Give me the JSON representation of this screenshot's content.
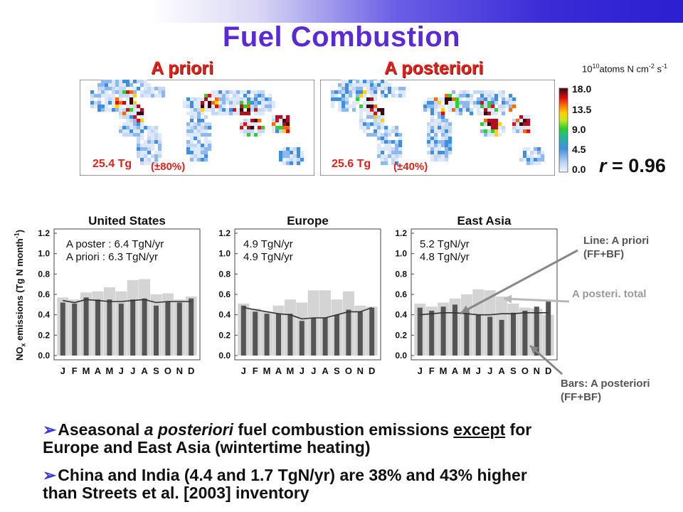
{
  "slide": {
    "title": "Fuel Combustion"
  },
  "maps": {
    "priori": {
      "title": "A priori",
      "total": "25.4 Tg",
      "uncertainty": "(±80%)"
    },
    "posteriori": {
      "title": "A posteriori",
      "total": "25.6 Tg",
      "uncertainty": "(±40%)"
    },
    "colorbar": {
      "ticks": [
        "18.0",
        "13.5",
        "9.0",
        "4.5",
        "0.0"
      ],
      "unit_base": "10",
      "unit_exp": "10",
      "unit_main": "atoms N cm",
      "unit_exp2": "-2",
      "unit_s": " s",
      "unit_exp3": "-1"
    },
    "correlation": {
      "label": "r",
      "value": "= 0.96"
    }
  },
  "y_axis_label_main": "NO",
  "y_axis_label_sub": "x",
  "y_axis_label_rest": " emissions (Tg N month",
  "y_axis_label_exp": "-1",
  "y_axis_label_close": ")",
  "legend": {
    "line": "Line: A priori (FF+BF)",
    "line_1": "Line: A priori",
    "line_2": "(FF+BF)",
    "light_bars": "A posteri. total",
    "bars_1": "Bars: A posteriori",
    "bars_2": "(FF+BF)"
  },
  "bullets": [
    {
      "part1": "Aseasonal ",
      "part2": "a posteriori",
      "part3": " fuel combustion emissions ",
      "part4": "except",
      "part5": " for",
      "line2": "Europe and East Asia (wintertime heating)"
    },
    {
      "line1": "China and India (4.4 and 1.7 TgN/yr) are 38% and 43% higher",
      "line2": "than Streets et al. [2003] inventory"
    }
  ],
  "colors": {
    "title": "#5a2ad4",
    "map_title": "#e0231a",
    "dark_bar": "#555555",
    "light_bar": "#d4d4d4",
    "line": "#333333",
    "arrow": "#3a3ad0"
  },
  "chart_data": [
    {
      "type": "bar",
      "title": "United States",
      "categories": [
        "J",
        "F",
        "M",
        "A",
        "M",
        "J",
        "J",
        "A",
        "S",
        "O",
        "N",
        "D"
      ],
      "ylim": [
        0,
        1.2
      ],
      "yticks": [
        "0.0",
        "0.2",
        "0.4",
        "0.6",
        "0.8",
        "1.0",
        "1.2"
      ],
      "annotation_1": "A poster : 6.4 TgN/yr",
      "annotation_2": "A priori  :  6.3 TgN/yr",
      "series": [
        {
          "values": [
            0.57,
            0.55,
            0.62,
            0.63,
            0.67,
            0.63,
            0.74,
            0.75,
            0.6,
            0.61,
            0.55,
            0.58
          ]
        },
        {
          "values": [
            0.52,
            0.51,
            0.57,
            0.55,
            0.55,
            0.51,
            0.55,
            0.56,
            0.49,
            0.53,
            0.52,
            0.56
          ]
        },
        {
          "values": [
            0.54,
            0.52,
            0.55,
            0.54,
            0.53,
            0.53,
            0.54,
            0.55,
            0.52,
            0.53,
            0.53,
            0.53
          ]
        }
      ]
    },
    {
      "type": "bar",
      "title": "Europe",
      "categories": [
        "J",
        "F",
        "M",
        "A",
        "M",
        "J",
        "J",
        "A",
        "S",
        "O",
        "N",
        "D"
      ],
      "ylim": [
        0,
        1.2
      ],
      "yticks": [
        "0.0",
        "0.2",
        "0.4",
        "0.6",
        "0.8",
        "1.0",
        "1.2"
      ],
      "annotation_1": "4.9 TgN/yr",
      "annotation_2": "4.9 TgN/yr",
      "series": [
        {
          "values": [
            0.51,
            0.46,
            0.43,
            0.49,
            0.55,
            0.52,
            0.64,
            0.64,
            0.55,
            0.63,
            0.49,
            0.48
          ]
        },
        {
          "values": [
            0.49,
            0.43,
            0.41,
            0.41,
            0.41,
            0.34,
            0.37,
            0.37,
            0.4,
            0.45,
            0.43,
            0.47
          ]
        },
        {
          "values": [
            0.47,
            0.45,
            0.43,
            0.41,
            0.4,
            0.36,
            0.37,
            0.37,
            0.4,
            0.43,
            0.43,
            0.47
          ]
        }
      ]
    },
    {
      "type": "bar",
      "title": "East Asia",
      "categories": [
        "J",
        "F",
        "M",
        "A",
        "M",
        "J",
        "J",
        "A",
        "S",
        "O",
        "N",
        "D"
      ],
      "ylim": [
        0,
        1.2
      ],
      "yticks": [
        "0.0",
        "0.2",
        "0.4",
        "0.6",
        "0.8",
        "1.0",
        "1.2"
      ],
      "annotation_1": "5.2 TgN/yr",
      "annotation_2": "4.8 TgN/yr",
      "series": [
        {
          "values": [
            0.51,
            0.48,
            0.52,
            0.56,
            0.6,
            0.65,
            0.64,
            0.58,
            0.51,
            0.47,
            0.46,
            0.4
          ]
        },
        {
          "values": [
            0.47,
            0.44,
            0.48,
            0.5,
            0.46,
            0.4,
            0.38,
            0.35,
            0.42,
            0.44,
            0.48,
            0.53
          ]
        },
        {
          "values": [
            0.4,
            0.41,
            0.42,
            0.42,
            0.41,
            0.4,
            0.4,
            0.41,
            0.41,
            0.42,
            0.42,
            0.42
          ]
        }
      ]
    }
  ]
}
